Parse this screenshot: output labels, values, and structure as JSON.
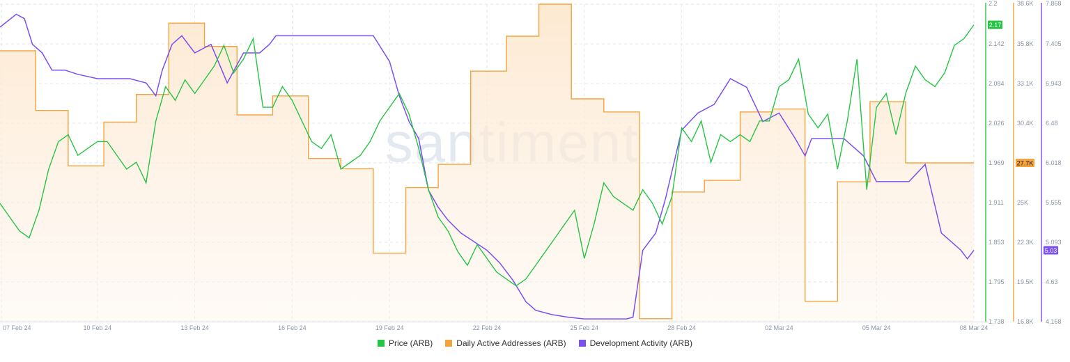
{
  "watermark": "santiment",
  "colors": {
    "price": "#26c444",
    "daa": "#f5a33c",
    "daa_fill_top": "#fde8cf",
    "dev": "#7b4ff0",
    "grid": "#e3e6ee",
    "tick": "#8a94a6"
  },
  "legend": {
    "price": "Price (ARB)",
    "daa": "Daily Active Addresses (ARB)",
    "dev": "Development Activity (ARB)"
  },
  "badges": {
    "price": "2.17",
    "daa": "27.7K",
    "dev": "5.03"
  },
  "chart_data": {
    "type": "line",
    "x_ticks": [
      "07 Feb 24",
      "10 Feb 24",
      "13 Feb 24",
      "16 Feb 24",
      "19 Feb 24",
      "22 Feb 24",
      "25 Feb 24",
      "28 Feb 24",
      "02 Mar 24",
      "05 Mar 24",
      "08 Mar 24"
    ],
    "xlim": [
      0,
      30
    ],
    "grid": true,
    "legend_position": "bottom",
    "axes": {
      "price": {
        "ticks": [
          "2.2",
          "2.142",
          "2.084",
          "2.026",
          "1.969",
          "1.911",
          "1.853",
          "1.795",
          "1.738"
        ],
        "ylim": [
          1.738,
          2.2
        ]
      },
      "daa": {
        "ticks": [
          "38.6K",
          "35.8K",
          "33.1K",
          "30.4K",
          "27.7K",
          "25K",
          "22.3K",
          "19.5K",
          "16.8K"
        ],
        "ylim": [
          16800,
          38600
        ]
      },
      "dev": {
        "ticks": [
          "7.868",
          "7.405",
          "6.943",
          "6.48",
          "6.018",
          "5.555",
          "5.093",
          "4.63",
          "4.168"
        ],
        "ylim": [
          4.168,
          7.868
        ]
      }
    },
    "series": [
      {
        "name": "Price (ARB)",
        "axis": "price",
        "x": [
          0,
          0.3,
          0.6,
          0.9,
          1.2,
          1.5,
          1.8,
          2.1,
          2.4,
          2.7,
          3.0,
          3.3,
          3.6,
          3.9,
          4.2,
          4.5,
          4.8,
          5.1,
          5.4,
          5.7,
          6.0,
          6.3,
          6.6,
          6.9,
          7.2,
          7.5,
          7.8,
          8.1,
          8.4,
          8.7,
          9.0,
          9.3,
          9.6,
          9.9,
          10.2,
          10.5,
          10.8,
          11.1,
          11.4,
          11.7,
          12.0,
          12.3,
          12.6,
          12.9,
          13.2,
          13.5,
          13.8,
          14.1,
          14.4,
          14.7,
          15.0,
          15.3,
          15.6,
          15.9,
          16.2,
          16.5,
          16.8,
          17.1,
          17.4,
          17.7,
          18.0,
          18.3,
          18.6,
          18.9,
          19.2,
          19.5,
          19.8,
          20.1,
          20.4,
          20.7,
          21.0,
          21.3,
          21.6,
          21.9,
          22.2,
          22.5,
          22.8,
          23.1,
          23.4,
          23.7,
          24.0,
          24.3,
          24.6,
          24.9,
          25.2,
          25.5,
          25.8,
          26.1,
          26.4,
          26.7,
          27.0,
          27.3,
          27.6,
          27.9,
          28.2,
          28.5,
          28.8,
          29.1,
          29.4,
          29.7,
          30.0
        ],
        "y": [
          1.91,
          1.89,
          1.87,
          1.86,
          1.9,
          1.96,
          2.0,
          2.01,
          1.98,
          1.99,
          2.0,
          2.0,
          1.98,
          1.96,
          1.97,
          1.94,
          2.03,
          2.08,
          2.06,
          2.09,
          2.07,
          2.09,
          2.11,
          2.14,
          2.1,
          2.12,
          2.15,
          2.05,
          2.05,
          2.08,
          2.06,
          2.03,
          2.0,
          1.99,
          2.01,
          1.96,
          1.97,
          1.98,
          2.0,
          2.03,
          2.05,
          2.07,
          2.04,
          1.99,
          1.93,
          1.89,
          1.87,
          1.84,
          1.82,
          1.85,
          1.83,
          1.81,
          1.8,
          1.79,
          1.8,
          1.82,
          1.84,
          1.86,
          1.88,
          1.9,
          1.83,
          1.88,
          1.94,
          1.92,
          1.91,
          1.9,
          1.93,
          1.91,
          1.88,
          1.92,
          2.02,
          2.0,
          2.03,
          1.97,
          2.01,
          2.0,
          2.01,
          2.0,
          2.03,
          2.03,
          2.08,
          2.09,
          2.12,
          2.04,
          2.02,
          2.04,
          1.96,
          2.03,
          2.12,
          1.93,
          2.05,
          2.07,
          2.01,
          2.07,
          2.11,
          2.09,
          2.08,
          2.1,
          2.14,
          2.15,
          2.17
        ]
      },
      {
        "name": "Daily Active Addresses (ARB)",
        "axis": "daa",
        "x": [
          0,
          1.1,
          1.1,
          2.1,
          2.1,
          3.2,
          3.2,
          4.2,
          4.2,
          5.2,
          5.2,
          6.3,
          6.3,
          7.3,
          7.3,
          8.4,
          8.4,
          9.5,
          9.5,
          10.5,
          10.5,
          11.5,
          11.5,
          12.5,
          12.5,
          13.5,
          13.5,
          14.5,
          14.5,
          15.6,
          15.6,
          16.6,
          16.6,
          17.6,
          17.6,
          18.6,
          18.6,
          19.7,
          19.7,
          20.7,
          20.7,
          21.7,
          21.7,
          22.8,
          22.8,
          23.8,
          23.8,
          24.8,
          24.8,
          25.8,
          25.8,
          26.8,
          26.8,
          27.9,
          27.9,
          28.9,
          28.9,
          30.0
        ],
        "y": [
          35.4,
          35.4,
          31.3,
          31.3,
          27.5,
          27.5,
          30.5,
          30.5,
          32.4,
          32.4,
          37.3,
          37.3,
          35.7,
          35.7,
          31.0,
          31.0,
          32.3,
          32.3,
          28.0,
          28.0,
          27.3,
          27.3,
          21.5,
          21.5,
          26.0,
          26.0,
          27.6,
          27.6,
          34.0,
          34.0,
          36.4,
          36.4,
          38.6,
          38.6,
          32.1,
          32.1,
          31.2,
          31.2,
          17.0,
          17.0,
          25.7,
          25.7,
          26.5,
          26.5,
          31.2,
          31.2,
          31.4,
          31.4,
          18.2,
          18.2,
          26.4,
          26.4,
          31.9,
          31.9,
          27.7,
          27.7,
          27.7,
          27.7
        ]
      },
      {
        "name": "Development Activity (ARB)",
        "axis": "dev",
        "x": [
          0,
          0.5,
          0.75,
          1.0,
          1.3,
          1.6,
          2.0,
          2.4,
          3.0,
          3.5,
          4.0,
          4.5,
          4.8,
          5.0,
          5.3,
          5.6,
          6.0,
          6.5,
          7.0,
          7.5,
          8.0,
          8.3,
          8.5,
          8.8,
          9.0,
          9.5,
          10.0,
          10.5,
          11.0,
          11.5,
          12.0,
          12.3,
          12.6,
          12.9,
          13.2,
          13.5,
          13.8,
          14.2,
          14.6,
          15.0,
          15.4,
          15.8,
          16.2,
          16.5,
          17.0,
          17.5,
          18.0,
          18.5,
          19.0,
          19.3,
          19.5,
          19.8,
          20.2,
          20.5,
          21.0,
          21.5,
          22.0,
          22.5,
          23.0,
          23.5,
          24.0,
          24.5,
          24.8,
          25.0,
          25.2,
          25.5,
          25.8,
          26.0,
          26.3,
          26.6,
          27.0,
          27.5,
          28.0,
          28.5,
          29.0,
          29.3,
          29.6,
          29.8,
          30.0
        ],
        "y": [
          7.6,
          7.75,
          7.7,
          7.4,
          7.3,
          7.1,
          7.1,
          7.05,
          7.0,
          7.0,
          7.0,
          6.95,
          6.8,
          7.1,
          7.4,
          7.5,
          7.3,
          7.4,
          6.95,
          7.3,
          7.3,
          7.4,
          7.5,
          7.5,
          7.5,
          7.5,
          7.5,
          7.5,
          7.5,
          7.5,
          7.2,
          6.8,
          6.5,
          6.3,
          5.7,
          5.5,
          5.35,
          5.2,
          5.1,
          5.0,
          4.85,
          4.65,
          4.4,
          4.3,
          4.25,
          4.22,
          4.2,
          4.2,
          4.2,
          4.2,
          4.22,
          5.0,
          5.2,
          5.6,
          6.4,
          6.6,
          6.7,
          7.0,
          6.9,
          6.5,
          6.6,
          6.3,
          6.1,
          6.3,
          6.3,
          6.3,
          6.3,
          6.3,
          6.2,
          6.1,
          5.8,
          5.8,
          5.8,
          6.0,
          5.2,
          5.1,
          5.0,
          4.9,
          5.0
        ]
      }
    ]
  }
}
